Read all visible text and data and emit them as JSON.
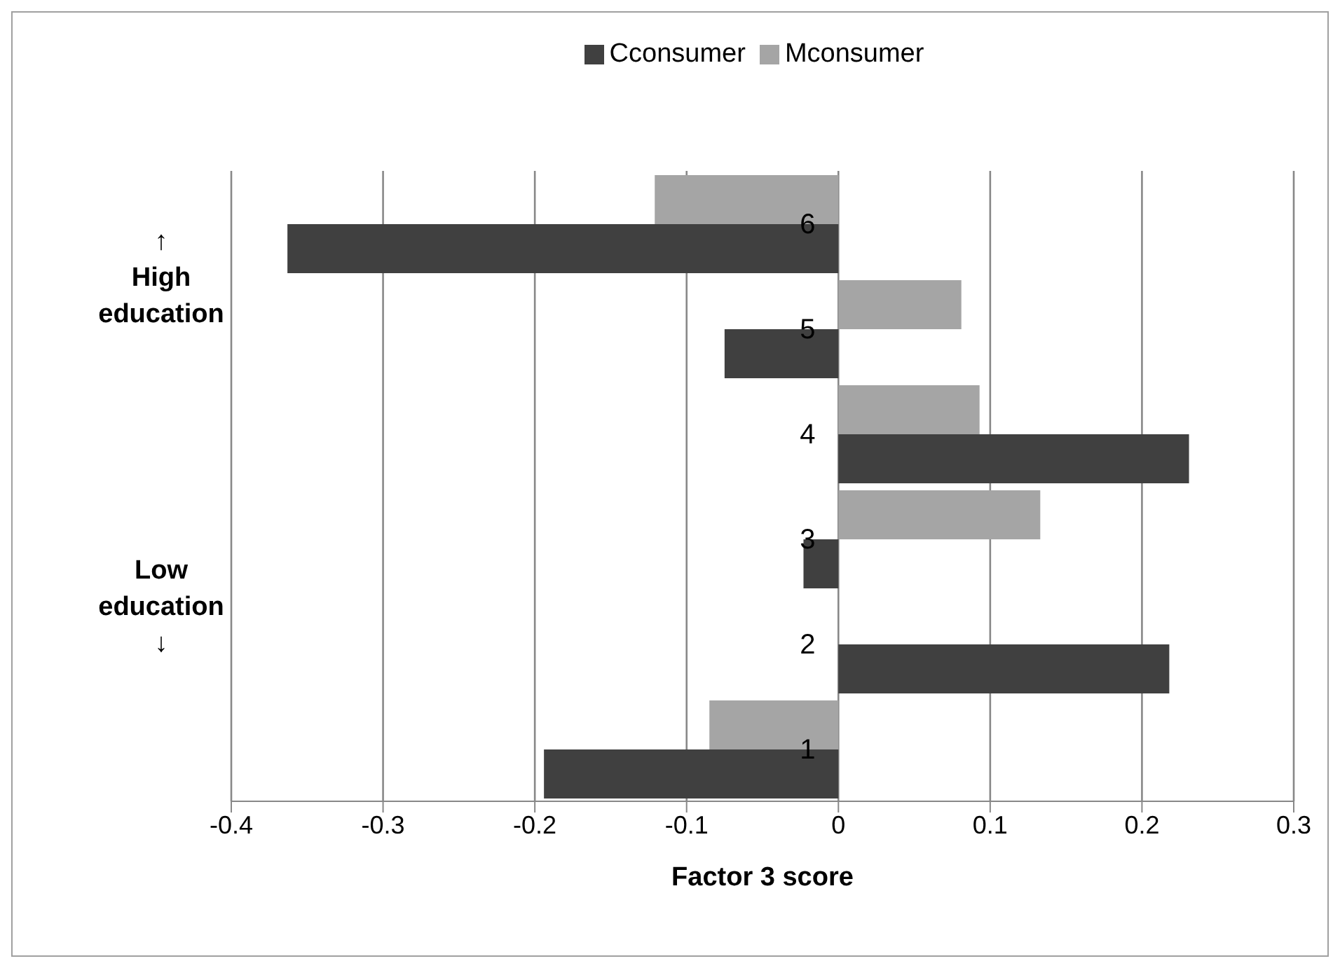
{
  "chart_data": {
    "type": "bar",
    "orientation": "horizontal",
    "xlabel": "Factor 3 score",
    "categories": [
      "6",
      "5",
      "4",
      "3",
      "2",
      "1"
    ],
    "series": [
      {
        "name": "Mconsumer",
        "color": "#a5a5a5",
        "values": [
          -0.121,
          0.081,
          0.093,
          0.133,
          null,
          -0.085
        ]
      },
      {
        "name": "Cconsumer",
        "color": "#404040",
        "values": [
          -0.363,
          -0.075,
          0.231,
          -0.023,
          0.218,
          -0.194
        ]
      }
    ],
    "xlim": [
      -0.4,
      0.3
    ],
    "xticks": [
      -0.4,
      -0.3,
      -0.2,
      -0.1,
      0,
      0.1,
      0.2,
      0.3
    ],
    "grid": "x",
    "legend": "top",
    "annotations": [
      "↑\nHigh\neducation",
      "Low\neducation\n↓"
    ]
  }
}
